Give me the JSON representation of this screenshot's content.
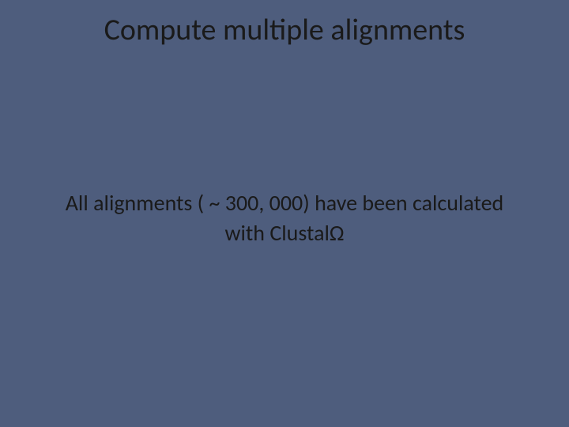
{
  "slide": {
    "title": "Compute multiple alignments",
    "body_line1": "All alignments ( ~ 300, 000) have been calculated",
    "body_line2": "with ClustalΩ",
    "background_color": "#4e5d7d",
    "text_color": "#1a1a1a",
    "title_fontsize": 38,
    "body_fontsize": 28,
    "font_family": "Calibri"
  }
}
